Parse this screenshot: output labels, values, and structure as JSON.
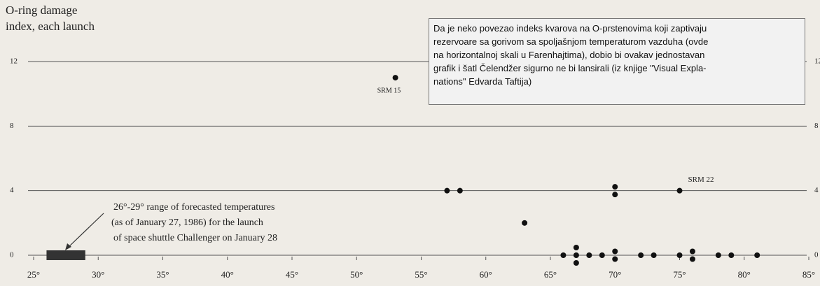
{
  "chart_data": {
    "type": "scatter",
    "ylabel": [
      "O-ring damage",
      "index, each launch"
    ],
    "x": [
      53,
      57,
      58,
      63,
      70,
      70,
      75,
      66,
      67,
      67,
      67,
      68,
      69,
      70,
      70,
      72,
      73,
      75,
      76,
      76,
      78,
      79,
      81
    ],
    "values": [
      11,
      4,
      4,
      2,
      4,
      4,
      4,
      0,
      0,
      0,
      0,
      0,
      0,
      0,
      0,
      0,
      0,
      0,
      0,
      0,
      0,
      0,
      0
    ],
    "color": "#111111",
    "xlim": [
      25,
      85
    ],
    "xticks": [
      {
        "value": 25,
        "label": "25°"
      },
      {
        "value": 30,
        "label": "30°"
      },
      {
        "value": 35,
        "label": "35°"
      },
      {
        "value": 40,
        "label": "40°"
      },
      {
        "value": 45,
        "label": "45°"
      },
      {
        "value": 50,
        "label": "50°"
      },
      {
        "value": 55,
        "label": "55°"
      },
      {
        "value": 60,
        "label": "60°"
      },
      {
        "value": 65,
        "label": "65°"
      },
      {
        "value": 70,
        "label": "70°"
      },
      {
        "value": 75,
        "label": "75°"
      },
      {
        "value": 80,
        "label": "80°"
      },
      {
        "value": 85,
        "label": "85°"
      }
    ],
    "ylim": [
      0,
      12
    ],
    "yticks": [
      0,
      4,
      8,
      12
    ],
    "grid": true,
    "forecast_range": [
      26,
      29
    ],
    "annotations": [
      "SRM 15",
      "SRM 22"
    ],
    "forecast_note": [
      "26°-29° range of forecasted temperatures",
      "(as of January 27, 1986) for the launch",
      "of space shuttle Challenger on January 28"
    ]
  },
  "caption": [
    "Da je neko povezao indeks kvarova na O-prstenovima koji zaptivaju",
    "rezervoare sa gorivom sa spoljašnjom temperaturom vazduha (ovde",
    "na horizontalnoj skali u Farenhajtima), dobio bi ovakav jednostavan",
    "grafik i šatl Čelendžer sigurno ne bi lansirali (iz knjige \"Visual Expla-",
    "nations\" Edvarda Taftija)"
  ]
}
